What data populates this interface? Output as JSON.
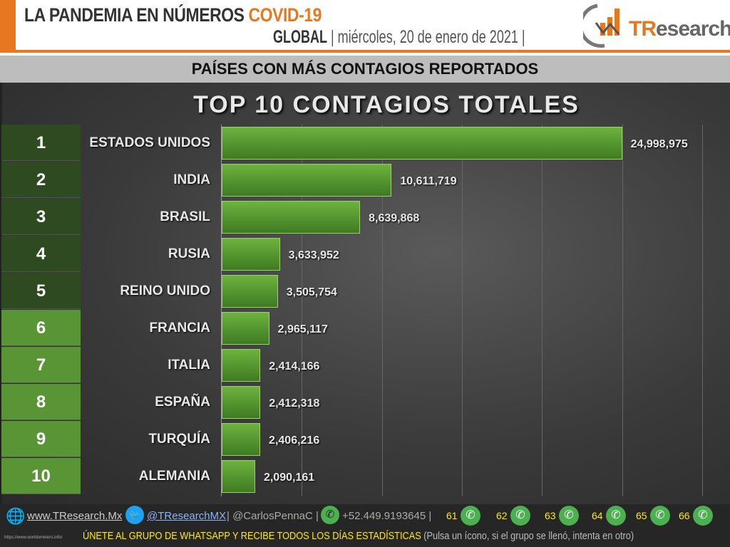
{
  "header": {
    "title_main": "LA PANDEMIA EN NÚMEROS",
    "title_accent": "COVID-19",
    "scope": "GLOBAL",
    "date": "| miércoles, 20 de enero de 2021 |",
    "logo_text_accent": "TR",
    "logo_text": "esearch"
  },
  "subtitle": "PAÍSES CON MÁS CONTAGIOS REPORTADOS",
  "colors": {
    "accent": "#e87722",
    "rank_dark": "#2e4a20",
    "rank_light": "#5a9535",
    "bar": "#5a9a32"
  },
  "chart_data": {
    "type": "bar",
    "orientation": "horizontal",
    "title": "TOP 10 CONTAGIOS TOTALES",
    "ranks": [
      "1",
      "2",
      "3",
      "4",
      "5",
      "6",
      "7",
      "8",
      "9",
      "10"
    ],
    "categories": [
      "ESTADOS UNIDOS",
      "INDIA",
      "BRASIL",
      "RUSIA",
      "REINO UNIDO",
      "FRANCIA",
      "ITALIA",
      "ESPAÑA",
      "TURQUÍA",
      "ALEMANIA"
    ],
    "values": [
      24998975,
      10611719,
      8639868,
      3633952,
      3505754,
      2965117,
      2414166,
      2412318,
      2406216,
      2090161
    ],
    "labels": [
      "24,998,975",
      "10,611,719",
      "8,639,868",
      "3,633,952",
      "3,505,754",
      "2,965,117",
      "2,414,166",
      "2,412,318",
      "2,406,216",
      "2,090,161"
    ],
    "xlim": [
      0,
      30000000
    ],
    "grid": true
  },
  "footer": {
    "website": "www.TResearch.Mx",
    "twitter": "@TResearchMX",
    "handle2": "| @CarlosPennaC |",
    "phone": "+52.449.9193645 |",
    "groups": [
      "61",
      "62",
      "63",
      "64",
      "65",
      "66"
    ],
    "source": "https://www.worldometers.info/",
    "cta": "ÚNETE AL GRUPO DE WHATSAPP Y RECIBE TODOS LOS DÍAS ESTADÍSTICAS",
    "cta_note": "(Pulsa un ícono, si el grupo se llenó, intenta en otro)"
  }
}
